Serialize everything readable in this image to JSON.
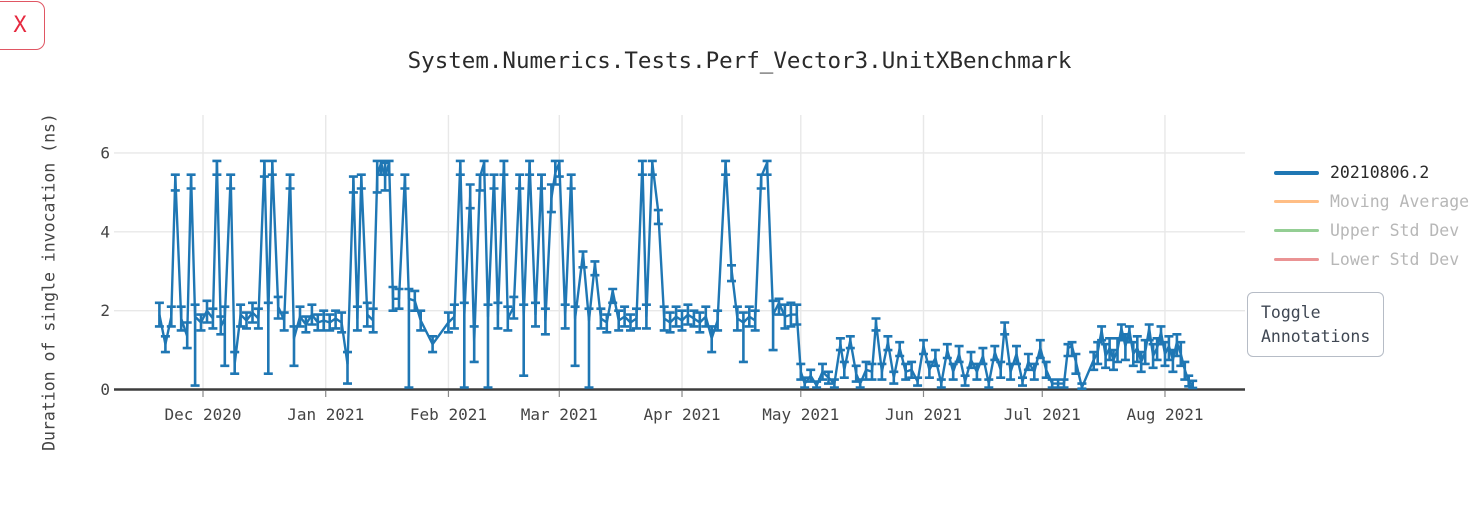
{
  "close_button": {
    "label": "X",
    "color": "#e6293f",
    "border_color": "#e05663"
  },
  "title": "System.Numerics.Tests.Perf_Vector3.UnitXBenchmark",
  "toggle_button": {
    "line1": "Toggle",
    "line2": "Annotations"
  },
  "legend": {
    "items": [
      {
        "label": "20210806.2",
        "color": "#1f77b4",
        "muted": false,
        "line_width": 4
      },
      {
        "label": "Moving Average",
        "color": "#ffbe85",
        "muted": true,
        "line_width": 3
      },
      {
        "label": "Upper Std Dev",
        "color": "#94ce94",
        "muted": true,
        "line_width": 3
      },
      {
        "label": "Lower Std Dev",
        "color": "#ea9394",
        "muted": true,
        "line_width": 3
      }
    ],
    "text_color": "#2a2a2a",
    "muted_text_color": "#b7b7b7"
  },
  "chart_data": {
    "type": "line",
    "error_bars": true,
    "title": "System.Numerics.Tests.Perf_Vector3.UnitXBenchmark",
    "ylabel": "Duration of single invocation (ns)",
    "xlabel": "",
    "series_name": "20210806.2",
    "line_color": "#1f77b4",
    "grid_color": "#e8e8e8",
    "zero_line_color": "#3d3d3d",
    "ylim": [
      0,
      6.95
    ],
    "y_ticks": [
      0,
      2,
      4,
      6
    ],
    "x_start_date": "2020-11-20",
    "x_unit": "days since 2020-11-20",
    "x_ticks": [
      {
        "label": "Dec 2020",
        "day": 11
      },
      {
        "label": "Jan 2021",
        "day": 42
      },
      {
        "label": "Feb 2021",
        "day": 73
      },
      {
        "label": "Mar 2021",
        "day": 101
      },
      {
        "label": "Apr 2021",
        "day": 132
      },
      {
        "label": "May 2021",
        "day": 162
      },
      {
        "label": "Jun 2021",
        "day": 193
      },
      {
        "label": "Jul 2021",
        "day": 223
      },
      {
        "label": "Aug 2021",
        "day": 254
      }
    ],
    "point_format": [
      "day",
      "value_ns",
      "err_minus",
      "err_plus"
    ],
    "points": [
      [
        0,
        1.9,
        0.3,
        0.3
      ],
      [
        1.5,
        1.15,
        0.2,
        0.2
      ],
      [
        3,
        1.85,
        0.25,
        0.25
      ],
      [
        4,
        5.4,
        0.35,
        0.05
      ],
      [
        5.5,
        1.8,
        0.3,
        0.3
      ],
      [
        7,
        1.35,
        0.3,
        0.35
      ],
      [
        8,
        5.4,
        0.3,
        0.05
      ],
      [
        9,
        1.85,
        1.75,
        0.3
      ],
      [
        10.5,
        1.7,
        0.2,
        0.2
      ],
      [
        12,
        2.0,
        0.3,
        0.25
      ],
      [
        13.5,
        1.8,
        0.25,
        0.25
      ],
      [
        14.5,
        5.75,
        0.3,
        0.05
      ],
      [
        15.5,
        1.6,
        0.2,
        0.25
      ],
      [
        16.5,
        1.8,
        1.2,
        0.3
      ],
      [
        18,
        5.4,
        0.3,
        0.05
      ],
      [
        19,
        0.65,
        0.25,
        0.3
      ],
      [
        20.5,
        1.9,
        0.3,
        0.25
      ],
      [
        22,
        1.75,
        0.2,
        0.2
      ],
      [
        23.5,
        1.95,
        0.25,
        0.25
      ],
      [
        25,
        1.8,
        0.25,
        0.25
      ],
      [
        26.5,
        5.75,
        0.35,
        0.05
      ],
      [
        27.5,
        1.9,
        1.5,
        0.3
      ],
      [
        28.5,
        5.75,
        0.3,
        0.05
      ],
      [
        30,
        2.1,
        0.3,
        0.25
      ],
      [
        31.5,
        1.75,
        0.25,
        0.2
      ],
      [
        33,
        5.4,
        0.3,
        0.05
      ],
      [
        34,
        1.3,
        0.7,
        0.3
      ],
      [
        35.5,
        1.85,
        0.25,
        0.25
      ],
      [
        37,
        1.65,
        0.2,
        0.2
      ],
      [
        38.5,
        1.9,
        0.25,
        0.25
      ],
      [
        40,
        1.7,
        0.2,
        0.2
      ],
      [
        41.5,
        1.75,
        0.25,
        0.25
      ],
      [
        43,
        1.7,
        0.2,
        0.2
      ],
      [
        44.5,
        1.8,
        0.25,
        0.2
      ],
      [
        46,
        1.7,
        0.25,
        0.25
      ],
      [
        47.5,
        0.65,
        0.5,
        0.3
      ],
      [
        49,
        5.3,
        0.3,
        0.1
      ],
      [
        50,
        1.8,
        0.3,
        0.3
      ],
      [
        51,
        5.4,
        0.3,
        0.05
      ],
      [
        52.5,
        1.9,
        0.3,
        0.3
      ],
      [
        54,
        1.75,
        0.3,
        0.3
      ],
      [
        55,
        5.4,
        0.4,
        0.4
      ],
      [
        56,
        5.75,
        0.3,
        0.05
      ],
      [
        57,
        5.4,
        0.35,
        0.35
      ],
      [
        58,
        5.75,
        0.3,
        0.05
      ],
      [
        59,
        2.3,
        0.3,
        0.3
      ],
      [
        60.5,
        2.3,
        0.25,
        0.25
      ],
      [
        62,
        5.4,
        0.3,
        0.05
      ],
      [
        63,
        2.3,
        2.25,
        0.25
      ],
      [
        64.5,
        2.25,
        0.25,
        0.25
      ],
      [
        66,
        1.75,
        0.25,
        0.25
      ],
      [
        69,
        1.15,
        0.2,
        0.2
      ],
      [
        73,
        1.7,
        0.25,
        0.25
      ],
      [
        74.5,
        1.85,
        0.3,
        0.3
      ],
      [
        76,
        5.75,
        0.3,
        0.05
      ],
      [
        77,
        1.9,
        1.85,
        0.3
      ],
      [
        78.5,
        4.9,
        0.3,
        0.3
      ],
      [
        79.5,
        1.2,
        0.5,
        0.4
      ],
      [
        81,
        5.4,
        0.35,
        0.05
      ],
      [
        82,
        5.75,
        0.3,
        0.05
      ],
      [
        83,
        1.85,
        1.8,
        0.3
      ],
      [
        84.5,
        5.4,
        0.3,
        0.05
      ],
      [
        85.5,
        1.9,
        0.35,
        0.3
      ],
      [
        87,
        5.75,
        0.3,
        0.05
      ],
      [
        88,
        1.8,
        0.3,
        0.3
      ],
      [
        89.5,
        2.1,
        0.3,
        0.25
      ],
      [
        91,
        5.4,
        0.3,
        0.05
      ],
      [
        92,
        1.85,
        1.5,
        0.3
      ],
      [
        93.5,
        5.75,
        0.3,
        0.05
      ],
      [
        95,
        1.9,
        0.3,
        0.3
      ],
      [
        96.5,
        5.4,
        0.3,
        0.05
      ],
      [
        97.5,
        1.75,
        0.35,
        0.3
      ],
      [
        99,
        4.85,
        0.35,
        0.35
      ],
      [
        100,
        5.5,
        0.3,
        0.3
      ],
      [
        101,
        5.75,
        0.35,
        0.05
      ],
      [
        102.5,
        1.85,
        0.3,
        0.3
      ],
      [
        104,
        5.4,
        0.3,
        0.05
      ],
      [
        105,
        1.8,
        1.2,
        0.3
      ],
      [
        107,
        3.45,
        0.35,
        0.05
      ],
      [
        108.5,
        1.75,
        1.7,
        0.3
      ],
      [
        110,
        3.2,
        0.3,
        0.05
      ],
      [
        111.5,
        1.8,
        0.25,
        0.25
      ],
      [
        113,
        1.7,
        0.25,
        0.2
      ],
      [
        114.5,
        2.5,
        0.3,
        0.05
      ],
      [
        116,
        1.75,
        0.25,
        0.25
      ],
      [
        117.5,
        1.85,
        0.25,
        0.25
      ],
      [
        119,
        1.7,
        0.2,
        0.2
      ],
      [
        120.5,
        1.8,
        0.25,
        0.25
      ],
      [
        122,
        5.75,
        0.3,
        0.05
      ],
      [
        123,
        1.85,
        0.3,
        0.3
      ],
      [
        124.5,
        5.75,
        0.3,
        0.05
      ],
      [
        126,
        4.5,
        0.3,
        0.05
      ],
      [
        127.5,
        1.8,
        0.3,
        0.3
      ],
      [
        129,
        1.7,
        0.25,
        0.25
      ],
      [
        130.5,
        1.85,
        0.25,
        0.25
      ],
      [
        132,
        1.75,
        0.25,
        0.25
      ],
      [
        133.5,
        1.9,
        0.25,
        0.25
      ],
      [
        135,
        1.8,
        0.2,
        0.2
      ],
      [
        136.5,
        1.7,
        0.25,
        0.25
      ],
      [
        138,
        1.85,
        0.25,
        0.25
      ],
      [
        139.5,
        1.3,
        0.35,
        0.3
      ],
      [
        141,
        1.75,
        0.25,
        0.25
      ],
      [
        143,
        5.75,
        0.3,
        0.05
      ],
      [
        144.5,
        3.05,
        0.3,
        0.1
      ],
      [
        146,
        1.8,
        0.3,
        0.3
      ],
      [
        147.5,
        1.7,
        1.0,
        0.25
      ],
      [
        149,
        1.85,
        0.25,
        0.25
      ],
      [
        150.5,
        1.75,
        0.25,
        0.25
      ],
      [
        152,
        5.4,
        0.3,
        0.05
      ],
      [
        153.5,
        5.75,
        0.3,
        0.05
      ],
      [
        155,
        1.9,
        0.9,
        0.35
      ],
      [
        156.5,
        2.2,
        0.3,
        0.1
      ],
      [
        158,
        1.85,
        0.3,
        0.3
      ],
      [
        159.5,
        1.9,
        0.3,
        0.3
      ],
      [
        161,
        1.9,
        0.25,
        0.25
      ],
      [
        162,
        0.45,
        0.2,
        0.2
      ],
      [
        163,
        0.15,
        0.1,
        0.15
      ],
      [
        164.5,
        0.35,
        0.15,
        0.15
      ],
      [
        166,
        0.1,
        0.05,
        0.1
      ],
      [
        167.5,
        0.45,
        0.2,
        0.2
      ],
      [
        169,
        0.3,
        0.15,
        0.15
      ],
      [
        170.5,
        0.15,
        0.1,
        0.1
      ],
      [
        172,
        1.15,
        0.15,
        0.15
      ],
      [
        173,
        0.5,
        0.2,
        0.2
      ],
      [
        174.5,
        1.25,
        0.2,
        0.1
      ],
      [
        176,
        0.4,
        0.2,
        0.2
      ],
      [
        177,
        0.15,
        0.1,
        0.1
      ],
      [
        178.5,
        0.5,
        0.25,
        0.2
      ],
      [
        180,
        0.45,
        0.2,
        0.2
      ],
      [
        181,
        1.7,
        0.2,
        0.1
      ],
      [
        182.5,
        0.45,
        0.2,
        0.2
      ],
      [
        184,
        1.2,
        0.2,
        0.15
      ],
      [
        185.5,
        0.3,
        0.15,
        0.15
      ],
      [
        187,
        1.05,
        0.2,
        0.15
      ],
      [
        188.5,
        0.45,
        0.2,
        0.2
      ],
      [
        190,
        0.5,
        0.2,
        0.2
      ],
      [
        191.5,
        0.2,
        0.1,
        0.1
      ],
      [
        193,
        1.1,
        0.2,
        0.15
      ],
      [
        194.5,
        0.5,
        0.2,
        0.2
      ],
      [
        196,
        0.8,
        0.2,
        0.2
      ],
      [
        197.5,
        0.15,
        0.1,
        0.1
      ],
      [
        199,
        1.0,
        0.2,
        0.15
      ],
      [
        200.5,
        0.45,
        0.2,
        0.2
      ],
      [
        202,
        0.9,
        0.2,
        0.2
      ],
      [
        203.5,
        0.2,
        0.1,
        0.15
      ],
      [
        205,
        0.75,
        0.2,
        0.2
      ],
      [
        206.5,
        0.45,
        0.2,
        0.2
      ],
      [
        208,
        0.85,
        0.2,
        0.2
      ],
      [
        209.5,
        0.15,
        0.1,
        0.1
      ],
      [
        211,
        0.95,
        0.2,
        0.15
      ],
      [
        212.5,
        0.5,
        0.2,
        0.2
      ],
      [
        213.5,
        1.6,
        0.2,
        0.1
      ],
      [
        215,
        0.45,
        0.2,
        0.2
      ],
      [
        216.5,
        0.9,
        0.25,
        0.2
      ],
      [
        218,
        0.2,
        0.1,
        0.1
      ],
      [
        219.5,
        0.7,
        0.2,
        0.2
      ],
      [
        221,
        0.45,
        0.2,
        0.2
      ],
      [
        222.5,
        1.05,
        0.25,
        0.2
      ],
      [
        224,
        0.5,
        0.2,
        0.2
      ],
      [
        225.5,
        0.15,
        0.1,
        0.1
      ],
      [
        227,
        0.15,
        0.1,
        0.1
      ],
      [
        228.5,
        0.15,
        0.1,
        0.1
      ],
      [
        229.5,
        1.05,
        0.2,
        0.1
      ],
      [
        230.5,
        1.1,
        0.25,
        0.1
      ],
      [
        231.5,
        0.7,
        0.3,
        0.2
      ],
      [
        233,
        0.05,
        0.03,
        0.1
      ],
      [
        236,
        0.75,
        0.25,
        0.2
      ],
      [
        237,
        0.95,
        0.3,
        0.25
      ],
      [
        238,
        1.5,
        0.25,
        0.1
      ],
      [
        239,
        0.85,
        0.3,
        0.3
      ],
      [
        240,
        1.05,
        0.3,
        0.25
      ],
      [
        241,
        0.75,
        0.25,
        0.25
      ],
      [
        242,
        1.0,
        0.3,
        0.3
      ],
      [
        243,
        1.55,
        0.3,
        0.1
      ],
      [
        244,
        1.1,
        0.35,
        0.3
      ],
      [
        245,
        1.5,
        0.3,
        0.1
      ],
      [
        246,
        0.9,
        0.3,
        0.3
      ],
      [
        247,
        1.05,
        0.35,
        0.3
      ],
      [
        248,
        0.7,
        0.25,
        0.25
      ],
      [
        249,
        0.95,
        0.3,
        0.3
      ],
      [
        250,
        1.55,
        0.3,
        0.1
      ],
      [
        251,
        0.85,
        0.3,
        0.3
      ],
      [
        252,
        1.05,
        0.3,
        0.25
      ],
      [
        253,
        1.45,
        0.3,
        0.15
      ],
      [
        254,
        0.9,
        0.3,
        0.3
      ],
      [
        255,
        1.1,
        0.35,
        0.25
      ],
      [
        256,
        0.75,
        0.3,
        0.25
      ],
      [
        257,
        1.2,
        0.35,
        0.2
      ],
      [
        258,
        0.9,
        0.3,
        0.3
      ],
      [
        259,
        0.5,
        0.25,
        0.2
      ],
      [
        260,
        0.2,
        0.12,
        0.15
      ],
      [
        261,
        0.1,
        0.06,
        0.12
      ]
    ]
  }
}
